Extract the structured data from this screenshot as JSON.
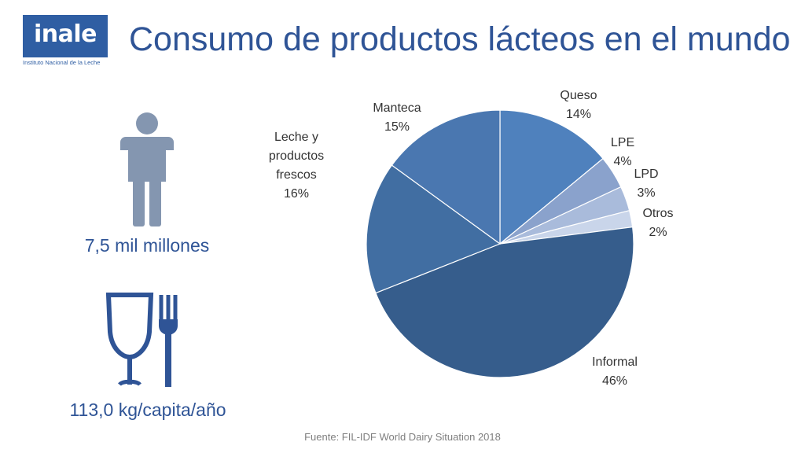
{
  "logo": {
    "word": "inale",
    "subtitle": "Instituto Nacional de la Leche"
  },
  "title": "Consumo de productos lácteos en el mundo",
  "stats": {
    "population": "7,5 mil millones",
    "consumption": "113,0 kg/capita/año"
  },
  "icons": {
    "population": "person-icon",
    "consumption": "cutlery-icon"
  },
  "source": "Fuente: FIL-IDF World Dairy Situation 2018",
  "chart_data": {
    "type": "pie",
    "title": "",
    "slices": [
      {
        "label": "Queso",
        "value": 14,
        "display": "14%",
        "color": "#4f81bd"
      },
      {
        "label": "LPE",
        "value": 4,
        "display": "4%",
        "color": "#8aa2cc"
      },
      {
        "label": "LPD",
        "value": 3,
        "display": "3%",
        "color": "#a9bbdb"
      },
      {
        "label": "Otros",
        "value": 2,
        "display": "2%",
        "color": "#c9d5ea"
      },
      {
        "label": "Informal",
        "value": 46,
        "display": "46%",
        "color": "#365d8c"
      },
      {
        "label": "Leche y productos frescos",
        "value": 16,
        "display": "16%",
        "color": "#416ea2"
      },
      {
        "label": "Manteca",
        "value": 15,
        "display": "15%",
        "color": "#4a77b0"
      }
    ]
  }
}
